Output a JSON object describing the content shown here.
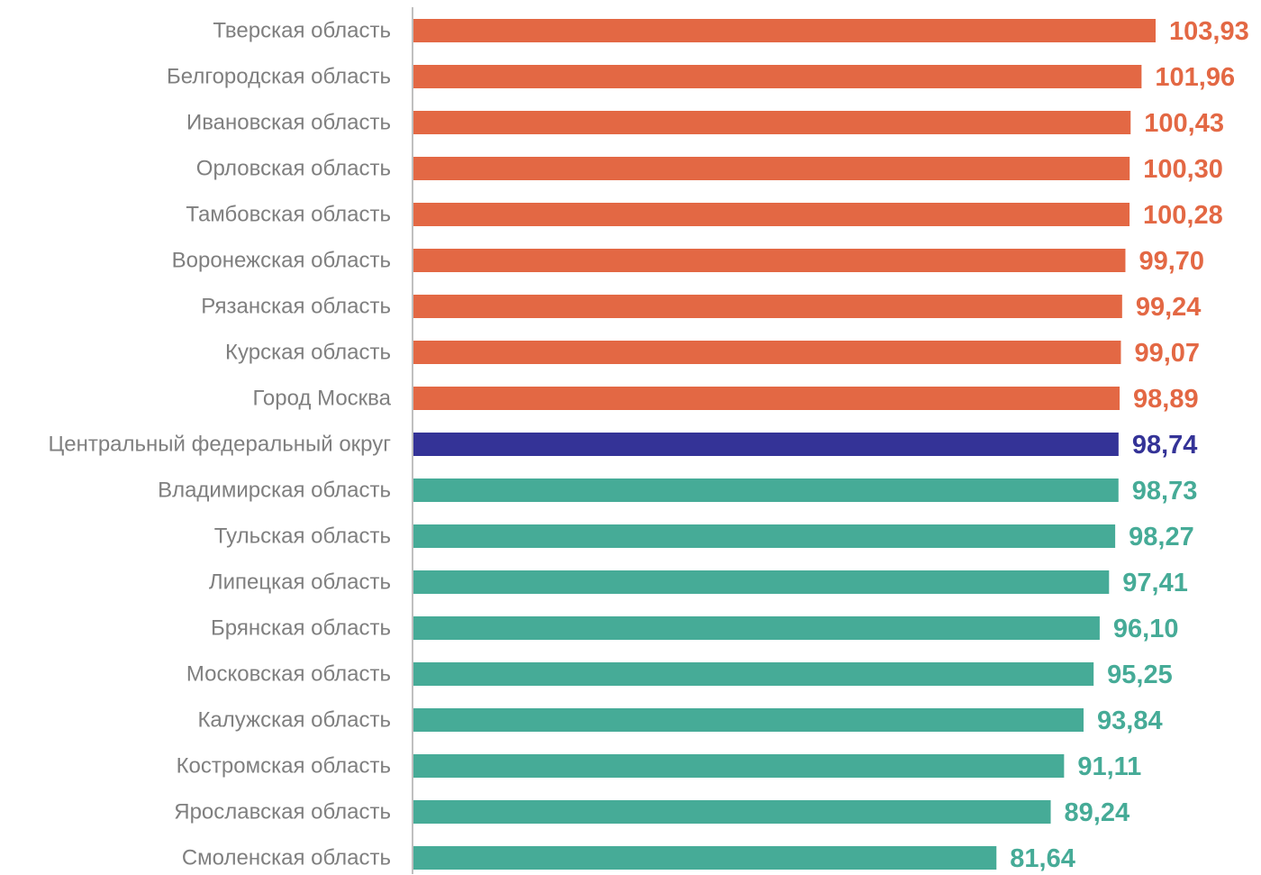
{
  "chart_data": {
    "type": "bar",
    "orientation": "horizontal",
    "title": "",
    "xlabel": "",
    "ylabel": "",
    "grid": false,
    "legend": "none",
    "categories": [
      "Тверская область",
      "Белгородская область",
      "Ивановская область",
      "Орловская область",
      "Тамбовская область",
      "Воронежская область",
      "Рязанская область",
      "Курская область",
      "Город Москва",
      "Центральный федеральный округ",
      "Владимирская область",
      "Тульская область",
      "Липецкая область",
      "Брянская область",
      "Московская область",
      "Калужская область",
      "Костромская область",
      "Ярославская область",
      "Смоленская область"
    ],
    "values": [
      103.93,
      101.96,
      100.43,
      100.3,
      100.28,
      99.7,
      99.24,
      99.07,
      98.89,
      98.74,
      98.73,
      98.27,
      97.41,
      96.1,
      95.25,
      93.84,
      91.11,
      89.24,
      81.64
    ],
    "value_labels": [
      "103,93",
      "101,96",
      "100,43",
      "100,30",
      "100,28",
      "99,70",
      "99,24",
      "99,07",
      "98,89",
      "98,74",
      "98,73",
      "98,27",
      "97,41",
      "96,10",
      "95,25",
      "93,84",
      "91,11",
      "89,24",
      "81,64"
    ],
    "xlim": [
      0,
      103.93
    ],
    "colors": {
      "above_district": "#e36844",
      "district": "#343397",
      "below_district": "#46ab97",
      "category_text": "#7f7f7f",
      "axis": "#bfbfbf"
    }
  }
}
